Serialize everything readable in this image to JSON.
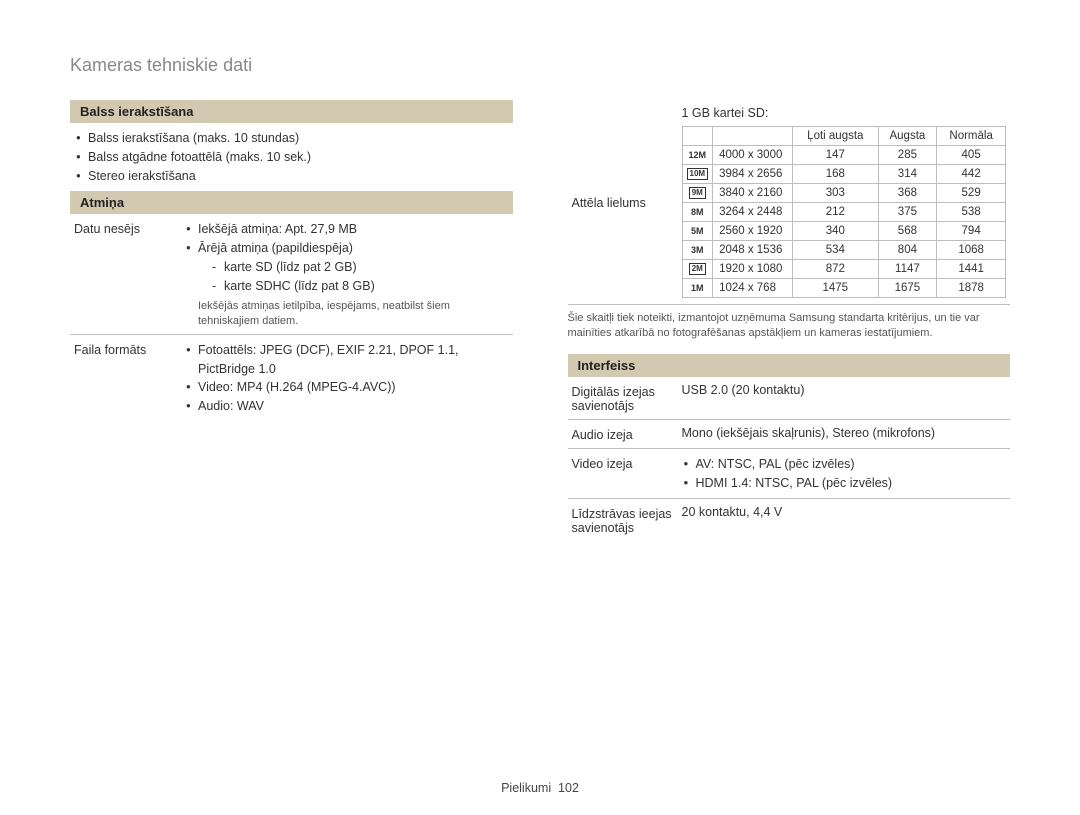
{
  "pageTitle": "Kameras tehniskie dati",
  "footer": {
    "section": "Pielikumi",
    "page": "102"
  },
  "colors": {
    "headerBg": "#d3c9b1",
    "border": "#bdbdbd",
    "titleText": "#888888",
    "bodyText": "#333333"
  },
  "left": {
    "voice": {
      "title": "Balss ierakstīšana",
      "items": [
        "Balss ierakstīšana (maks. 10 stundas)",
        "Balss atgādne fotoattēlā (maks. 10 sek.)",
        "Stereo ierakstīšana"
      ]
    },
    "memory": {
      "title": "Atmiņa",
      "rows": {
        "storage": {
          "label": "Datu nesējs",
          "internal": "Iekšējā atmiņa: Apt. 27,9 MB",
          "external_head": "Ārējā atmiņa (papildiespēja)",
          "external_items": [
            "karte SD (līdz pat 2 GB)",
            "karte SDHC (līdz pat 8 GB)"
          ],
          "note": "Iekšējās atmiņas ietilpība, iespējams, neatbilst šiem tehniskajiem datiem."
        },
        "format": {
          "label": "Faila formāts",
          "items": [
            "Fotoattēls: JPEG (DCF), EXIF 2.21, DPOF 1.1, PictBridge 1.0",
            "Video: MP4 (H.264 (MPEG-4.AVC))",
            "Audio: WAV"
          ]
        }
      }
    }
  },
  "right": {
    "imageSize": {
      "rowLabel": "Attēla lielums",
      "intro": "1 GB kartei SD:",
      "headers": [
        "Ļoti augsta",
        "Augsta",
        "Normāla"
      ],
      "rows": [
        {
          "icon": "12M",
          "iconStyle": "badge",
          "res": "4000 x 3000",
          "v": [
            147,
            285,
            405
          ]
        },
        {
          "icon": "10M",
          "iconStyle": "box",
          "res": "3984 x 2656",
          "v": [
            168,
            314,
            442
          ]
        },
        {
          "icon": "9M",
          "iconStyle": "box",
          "res": "3840 x 2160",
          "v": [
            303,
            368,
            529
          ]
        },
        {
          "icon": "8M",
          "iconStyle": "badge",
          "res": "3264 x 2448",
          "v": [
            212,
            375,
            538
          ]
        },
        {
          "icon": "5M",
          "iconStyle": "badge",
          "res": "2560 x 1920",
          "v": [
            340,
            568,
            794
          ]
        },
        {
          "icon": "3M",
          "iconStyle": "badge",
          "res": "2048 x 1536",
          "v": [
            534,
            804,
            1068
          ]
        },
        {
          "icon": "2M",
          "iconStyle": "box",
          "res": "1920 x 1080",
          "v": [
            872,
            1147,
            1441
          ]
        },
        {
          "icon": "1M",
          "iconStyle": "badge",
          "res": "1024 x 768",
          "v": [
            1475,
            1675,
            1878
          ]
        }
      ],
      "note": "Šie skaitļi tiek noteikti, izmantojot uzņēmuma Samsung standarta kritērijus, un tie var mainīties atkarībā no fotografēšanas apstākļiem un kameras iestatījumiem."
    },
    "interface": {
      "title": "Interfeiss",
      "rows": [
        {
          "label": "Digitālās izejas savienotājs",
          "text": "USB 2.0 (20 kontaktu)"
        },
        {
          "label": "Audio izeja",
          "text": "Mono (iekšējais skaļrunis), Stereo (mikrofons)"
        },
        {
          "label": "Video izeja",
          "list": [
            "AV: NTSC, PAL (pēc izvēles)",
            "HDMI 1.4: NTSC, PAL (pēc izvēles)"
          ]
        },
        {
          "label": "Līdzstrāvas ieejas savienotājs",
          "text": "20 kontaktu, 4,4 V"
        }
      ]
    }
  }
}
